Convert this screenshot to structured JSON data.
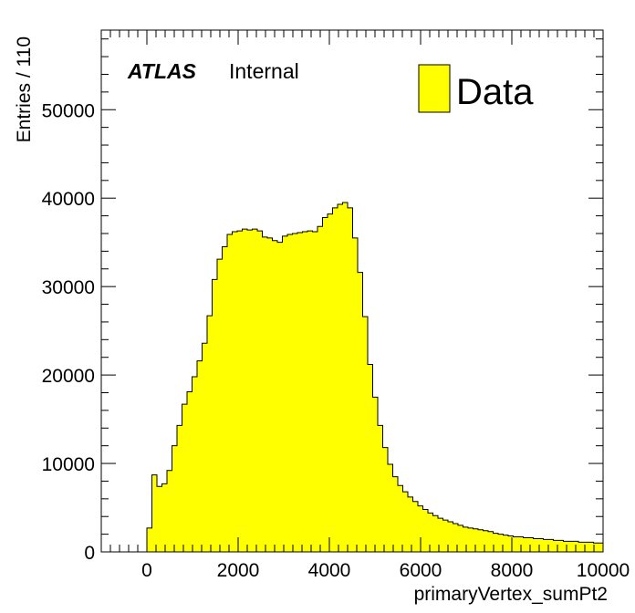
{
  "chart_data": {
    "type": "bar",
    "histogram": true,
    "xlabel": "primaryVertex_sumPt2",
    "ylabel": "Entries / 110",
    "xlim": [
      -1000,
      10000
    ],
    "ylim": [
      0,
      59000
    ],
    "xticks": [
      0,
      2000,
      4000,
      6000,
      8000,
      10000
    ],
    "yticks": [
      0,
      10000,
      20000,
      30000,
      40000,
      50000
    ],
    "bin_width": 110,
    "bin_start": 0,
    "values": [
      2700,
      8700,
      7400,
      7700,
      9200,
      12000,
      14300,
      16700,
      18100,
      19800,
      21600,
      23600,
      26700,
      30800,
      33100,
      34500,
      35900,
      36200,
      36300,
      36500,
      36400,
      36500,
      36300,
      35600,
      35500,
      35200,
      35000,
      35700,
      35900,
      36000,
      36100,
      36200,
      36300,
      36200,
      36800,
      37800,
      38200,
      38900,
      39300,
      39500,
      38900,
      35500,
      31600,
      26600,
      21200,
      17500,
      14300,
      11800,
      9900,
      8500,
      7500,
      6800,
      6200,
      5700,
      5200,
      4800,
      4400,
      4100,
      3800,
      3600,
      3400,
      3200,
      3000,
      2800,
      2700,
      2600,
      2500,
      2400,
      2300,
      2100,
      2000,
      1900,
      1800,
      1700,
      1700,
      1600,
      1600,
      1500,
      1500,
      1400,
      1400,
      1300,
      1300,
      1200,
      1200,
      1200,
      1100,
      1100,
      1100,
      1000,
      1000
    ],
    "series": [
      {
        "name": "Data",
        "color": "#ffff00"
      }
    ],
    "legend": "top-right",
    "grid": false
  },
  "labels": {
    "atlas": "ATLAS",
    "internal": "Internal",
    "legend_entry": "Data"
  },
  "colors": {
    "fill": "#ffff00",
    "line": "#000000"
  }
}
